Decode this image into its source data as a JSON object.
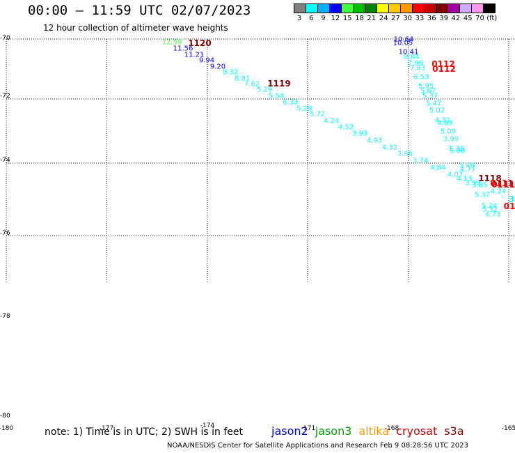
{
  "header": {
    "title": "00:00 – 11:59 UTC 02/07/2023",
    "subtitle": "12 hour collection of altimeter wave heights"
  },
  "legend": {
    "unit_labels": [
      "3",
      "6",
      "9",
      "12",
      "15",
      "18",
      "21",
      "24",
      "27",
      "30",
      "33",
      "36",
      "39",
      "42",
      "45",
      "70",
      "(ft)"
    ],
    "colors": [
      "#7f7f7f",
      "#00ffff",
      "#00b0ff",
      "#0000ff",
      "#40ff40",
      "#00c000",
      "#008000",
      "#ffff00",
      "#ffcc00",
      "#ff9900",
      "#ff0000",
      "#cc0000",
      "#800000",
      "#a000a0",
      "#ccaaff",
      "#ff99ee",
      "#000000"
    ]
  },
  "axes": {
    "lat_labels": [
      "-70",
      "-72",
      "-74",
      "-76",
      "-78",
      "-80"
    ],
    "lon_labels": [
      "-180",
      "-177",
      "-174",
      "-171",
      "-168",
      "-165"
    ]
  },
  "tracks": {
    "pass_1120": [
      {
        "v": "12.59",
        "c": "#40ff40"
      },
      {
        "v": "11.56",
        "c": "#0000ff"
      },
      {
        "v": "11.21",
        "c": "#0000ff"
      },
      {
        "v": "9.94",
        "c": "#0000ff"
      },
      {
        "v": "9.20",
        "c": "#0000ff"
      },
      {
        "v": "8.32",
        "c": "#00ffff"
      },
      {
        "v": "8.81",
        "c": "#00ffff"
      },
      {
        "v": "7.62",
        "c": "#00ffff"
      },
      {
        "v": "5.29",
        "c": "#00ffff"
      },
      {
        "v": "5.54",
        "c": "#00ffff"
      },
      {
        "v": "6.33",
        "c": "#00ffff"
      },
      {
        "v": "5.29",
        "c": "#00ffff"
      },
      {
        "v": "5.72",
        "c": "#00ffff"
      },
      {
        "v": "4.24",
        "c": "#00ffff"
      },
      {
        "v": "4.52",
        "c": "#00ffff"
      },
      {
        "v": "3.93",
        "c": "#00ffff"
      },
      {
        "v": "4.93",
        "c": "#00ffff"
      },
      {
        "v": "4.32",
        "c": "#00ffff"
      },
      {
        "v": "3.66",
        "c": "#00ffff"
      },
      {
        "v": "3.74",
        "c": "#00ffff"
      },
      {
        "v": "4.84",
        "c": "#00ffff"
      },
      {
        "v": "4.07",
        "c": "#00ffff"
      },
      {
        "v": "4.13",
        "c": "#00ffff"
      },
      {
        "v": "3.99",
        "c": "#00ffff"
      },
      {
        "v": "3.85",
        "c": "#00ffff"
      },
      {
        "v": "4.24",
        "c": "#00ffff"
      },
      {
        "v": "5.37",
        "c": "#00ffff"
      },
      {
        "v": "5.24",
        "c": "#00ffff"
      },
      {
        "v": "5.32",
        "c": "#00ffff"
      },
      {
        "v": "4.73",
        "c": "#00ffff"
      }
    ],
    "pass_0112": [
      {
        "v": "10.64",
        "c": "#0000ff"
      },
      {
        "v": "10.05",
        "c": "#0000ff"
      },
      {
        "v": "10.41",
        "c": "#0000ff"
      },
      {
        "v": "8.84",
        "c": "#00ffff"
      },
      {
        "v": "7.96",
        "c": "#00ffff"
      },
      {
        "v": "7.83",
        "c": "#00ffff"
      },
      {
        "v": "6.53",
        "c": "#00ffff"
      },
      {
        "v": "5.95",
        "c": "#00ffff"
      },
      {
        "v": "5.67",
        "c": "#00ffff"
      },
      {
        "v": "5.37",
        "c": "#00ffff"
      },
      {
        "v": "5.47",
        "c": "#00ffff"
      },
      {
        "v": "5.02",
        "c": "#00ffff"
      },
      {
        "v": "4.31",
        "c": "#00ffff"
      },
      {
        "v": "4.83",
        "c": "#00ffff"
      },
      {
        "v": "5.09",
        "c": "#00ffff"
      },
      {
        "v": "3.99",
        "c": "#00ffff"
      },
      {
        "v": "5.39",
        "c": "#00ffff"
      },
      {
        "v": "5.08",
        "c": "#00ffff"
      },
      {
        "v": "5.49",
        "c": "#00ffff"
      },
      {
        "v": "4.77",
        "c": "#00ffff"
      }
    ],
    "time_labels": [
      {
        "t": "1120",
        "c": "#800000"
      },
      {
        "t": "1119",
        "c": "#800000"
      },
      {
        "t": "0112",
        "c": "#ff0000"
      },
      {
        "t": "0112",
        "c": "#ff0000"
      },
      {
        "t": "1118",
        "c": "#800000"
      },
      {
        "t": "0111",
        "c": "#ff0000"
      },
      {
        "t": "0111",
        "c": "#cc0000"
      },
      {
        "t": "01",
        "c": "#ff0000"
      },
      {
        "t": "3",
        "c": "#00ffff"
      }
    ]
  },
  "footer": {
    "note": "note: 1) Time is in UTC; 2) SWH is in feet",
    "satellites": [
      {
        "name": "jason2",
        "color": "#0000cc"
      },
      {
        "name": "jason3",
        "color": "#00a000"
      },
      {
        "name": "altika",
        "color": "#ff9900"
      },
      {
        "name": "cryosat",
        "color": "#cc0000"
      },
      {
        "name": "s3a",
        "color": "#800000"
      }
    ],
    "credit": "NOAA/NESDIS Center for Satellite Applications and Research    Feb  9 08:28:56 UTC 2023"
  }
}
